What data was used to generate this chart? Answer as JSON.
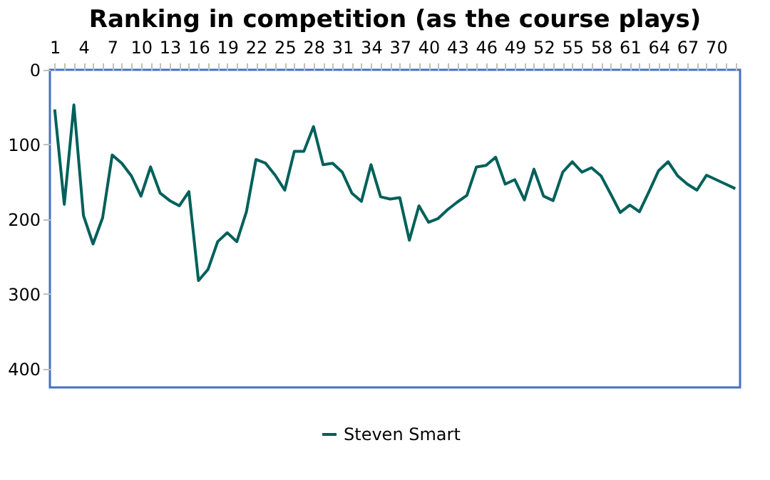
{
  "chart_data": {
    "type": "line",
    "title": "Ranking in competition (as the course plays)",
    "categories": [
      "1",
      null,
      null,
      "4",
      null,
      null,
      "7",
      null,
      null,
      "10",
      null,
      null,
      "13",
      null,
      null,
      "16",
      null,
      null,
      "19",
      null,
      null,
      "22",
      null,
      null,
      "25",
      null,
      null,
      "28",
      null,
      null,
      "31",
      null,
      null,
      "34",
      null,
      null,
      "37",
      null,
      null,
      "40",
      null,
      null,
      "43",
      null,
      null,
      "46",
      null,
      null,
      "49",
      null,
      null,
      "52",
      null,
      null,
      "55",
      null,
      null,
      "58",
      null,
      null,
      "61",
      null,
      null,
      "64",
      null,
      null,
      "67",
      null,
      null,
      "70",
      null,
      null
    ],
    "series": [
      {
        "name": "Steven Smart",
        "color": "#00605a",
        "values": [
          53,
          180,
          47,
          195,
          233,
          198,
          114,
          125,
          142,
          169,
          130,
          165,
          175,
          182,
          163,
          282,
          267,
          230,
          218,
          230,
          190,
          120,
          125,
          141,
          161,
          109,
          109,
          76,
          127,
          125,
          137,
          165,
          176,
          127,
          170,
          173,
          171,
          228,
          182,
          204,
          199,
          187,
          177,
          168,
          130,
          128,
          117,
          153,
          147,
          174,
          133,
          169,
          175,
          137,
          123,
          137,
          131,
          142,
          166,
          191,
          181,
          190,
          163,
          135,
          123,
          142,
          153,
          161,
          141,
          147,
          153,
          159
        ]
      }
    ],
    "ylim": [
      425,
      0
    ],
    "yticks": [
      0,
      100,
      200,
      300,
      400
    ],
    "grid": false,
    "legend": "bottom",
    "marker": "none",
    "line_style": "solid"
  }
}
